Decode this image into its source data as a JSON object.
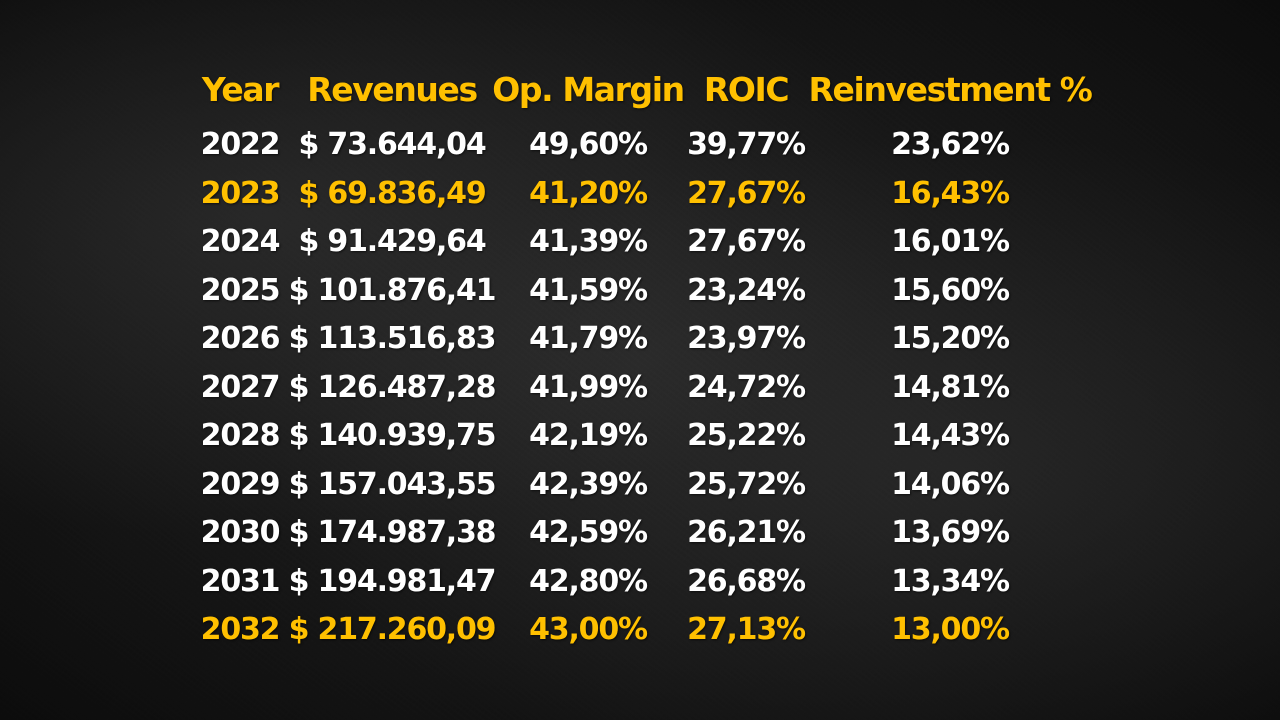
{
  "colors": {
    "header": "#ffc000",
    "highlight": "#ffc000",
    "text": "#ffffff",
    "background": "#1e1e1e"
  },
  "chart_data": {
    "type": "table",
    "columns": [
      "Year",
      "Revenues",
      "Op. Margin",
      "ROIC",
      "Reinvestment %"
    ],
    "rows": [
      {
        "year": "2022",
        "revenues": "$ 73.644,04",
        "op_margin": "49,60%",
        "roic": "39,77%",
        "reinvestment": "23,62%",
        "highlight": false
      },
      {
        "year": "2023",
        "revenues": "$ 69.836,49",
        "op_margin": "41,20%",
        "roic": "27,67%",
        "reinvestment": "16,43%",
        "highlight": true
      },
      {
        "year": "2024",
        "revenues": "$ 91.429,64",
        "op_margin": "41,39%",
        "roic": "27,67%",
        "reinvestment": "16,01%",
        "highlight": false
      },
      {
        "year": "2025",
        "revenues": "$ 101.876,41",
        "op_margin": "41,59%",
        "roic": "23,24%",
        "reinvestment": "15,60%",
        "highlight": false
      },
      {
        "year": "2026",
        "revenues": "$ 113.516,83",
        "op_margin": "41,79%",
        "roic": "23,97%",
        "reinvestment": "15,20%",
        "highlight": false
      },
      {
        "year": "2027",
        "revenues": "$ 126.487,28",
        "op_margin": "41,99%",
        "roic": "24,72%",
        "reinvestment": "14,81%",
        "highlight": false
      },
      {
        "year": "2028",
        "revenues": "$ 140.939,75",
        "op_margin": "42,19%",
        "roic": "25,22%",
        "reinvestment": "14,43%",
        "highlight": false
      },
      {
        "year": "2029",
        "revenues": "$ 157.043,55",
        "op_margin": "42,39%",
        "roic": "25,72%",
        "reinvestment": "14,06%",
        "highlight": false
      },
      {
        "year": "2030",
        "revenues": "$ 174.987,38",
        "op_margin": "42,59%",
        "roic": "26,21%",
        "reinvestment": "13,69%",
        "highlight": false
      },
      {
        "year": "2031",
        "revenues": "$ 194.981,47",
        "op_margin": "42,80%",
        "roic": "26,68%",
        "reinvestment": "13,34%",
        "highlight": false
      },
      {
        "year": "2032",
        "revenues": "$ 217.260,09",
        "op_margin": "43,00%",
        "roic": "27,13%",
        "reinvestment": "13,00%",
        "highlight": true
      }
    ]
  }
}
